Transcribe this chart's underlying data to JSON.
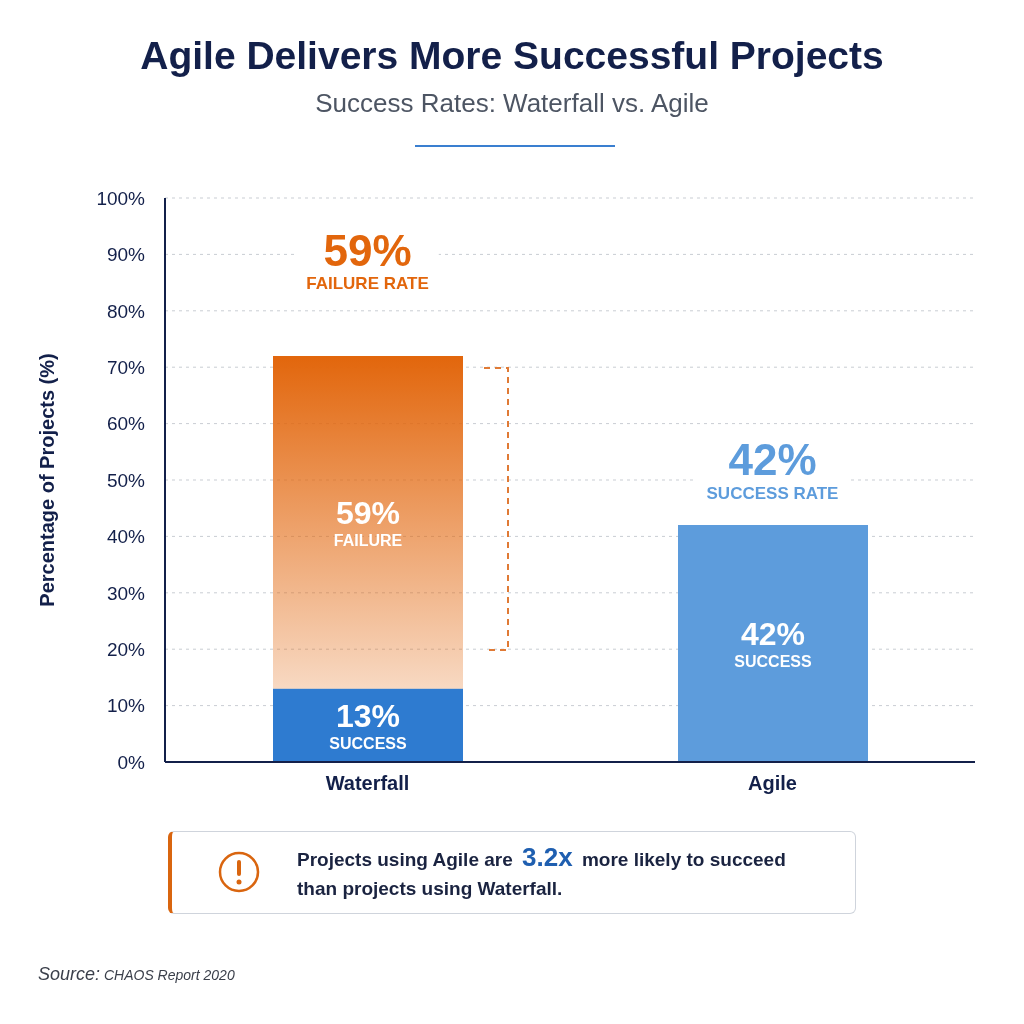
{
  "chart_data": {
    "type": "bar",
    "title": "Agile Delivers More Successful Projects",
    "subtitle": "Success Rates: Waterfall vs. Agile",
    "ylabel": "Percentage of Projects (%)",
    "categories": [
      "Waterfall",
      "Agile"
    ],
    "stacked": true,
    "series": [
      {
        "color": "#2e7bd0",
        "colors": [
          "#2e7bd0",
          "#5d9cdc"
        ],
        "values": [
          13,
          42
        ],
        "value_labels": [
          "13%\nSUCCESS",
          "42%\nSUCCESS"
        ]
      },
      {
        "color": "#e2660c",
        "values": [
          59,
          null
        ],
        "value_labels": [
          "59%\nFAILURE",
          null
        ]
      }
    ],
    "ylim": [
      0,
      100
    ],
    "yticks": [
      {
        "value": 0,
        "label": "0%"
      },
      {
        "value": 10,
        "label": "10%"
      },
      {
        "value": 20,
        "label": "20%"
      },
      {
        "value": 30,
        "label": "30%"
      },
      {
        "value": 40,
        "label": "40%"
      },
      {
        "value": 50,
        "label": "50%"
      },
      {
        "value": 60,
        "label": "60%"
      },
      {
        "value": 70,
        "label": "70%"
      },
      {
        "value": 80,
        "label": "80%"
      },
      {
        "value": 90,
        "label": "90%"
      },
      {
        "value": 100,
        "label": "100%"
      }
    ],
    "grid": "y",
    "annotations": [
      "59%\nFAILURE RATE",
      "42%\nSUCCESS RATE",
      "Projects using Agile are 3.2x more likely to succeed than projects using Waterfall.",
      "Source: CHAOS Report 2020"
    ]
  }
}
